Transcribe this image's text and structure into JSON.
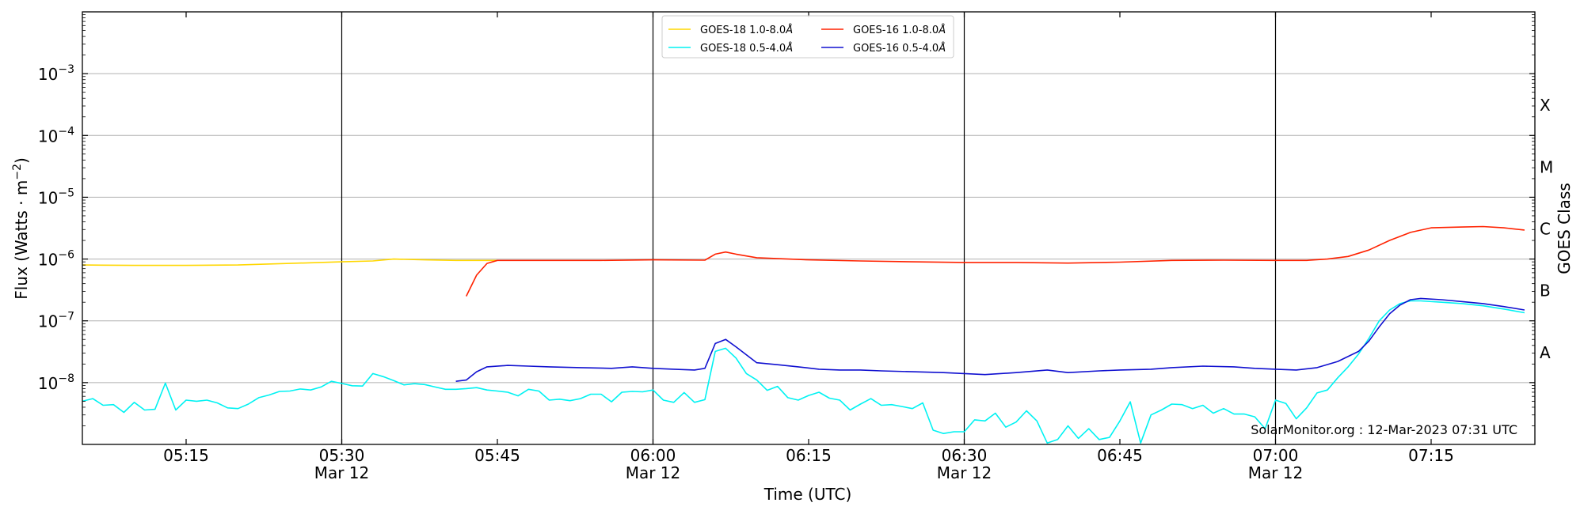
{
  "chart_data": {
    "type": "line",
    "ylabel": "Flux (Watts · m",
    "ylabel_sup": "−2",
    "ylabel_close": ")",
    "xlabel": "Time (UTC)",
    "right_label": "GOES Class",
    "credit": "SolarMonitor.org : 12-Mar-2023 07:31 UTC",
    "y_scale": "log",
    "ylim": [
      1e-09,
      0.01
    ],
    "xlim": [
      "2023-03-12 05:05",
      "2023-03-12 07:25"
    ],
    "y_ticks": [
      {
        "value": 0.001,
        "base": "10",
        "exp": "−3"
      },
      {
        "value": 0.0001,
        "base": "10",
        "exp": "−4"
      },
      {
        "value": 1e-05,
        "base": "10",
        "exp": "−5"
      },
      {
        "value": 1e-06,
        "base": "10",
        "exp": "−6"
      },
      {
        "value": 1e-07,
        "base": "10",
        "exp": "−7"
      },
      {
        "value": 1e-08,
        "base": "10",
        "exp": "−8"
      }
    ],
    "x_ticks": [
      {
        "time": "05:15",
        "label": "05:15",
        "date": ""
      },
      {
        "time": "05:30",
        "label": "05:30",
        "date": "Mar 12"
      },
      {
        "time": "05:45",
        "label": "05:45",
        "date": ""
      },
      {
        "time": "06:00",
        "label": "06:00",
        "date": "Mar 12"
      },
      {
        "time": "06:15",
        "label": "06:15",
        "date": ""
      },
      {
        "time": "06:30",
        "label": "06:30",
        "date": "Mar 12"
      },
      {
        "time": "06:45",
        "label": "06:45",
        "date": ""
      },
      {
        "time": "07:00",
        "label": "07:00",
        "date": "Mar 12"
      },
      {
        "time": "07:15",
        "label": "07:15",
        "date": ""
      }
    ],
    "grid_lines": [
      0.001,
      0.0001,
      1e-05,
      1e-06,
      1e-07,
      1e-08
    ],
    "vertical_lines": [
      "05:30",
      "06:00",
      "06:30",
      "07:00"
    ],
    "classes": [
      {
        "label": "X",
        "flux": 0.0001
      },
      {
        "label": "M",
        "flux": 1e-05
      },
      {
        "label": "C",
        "flux": 1e-06
      },
      {
        "label": "B",
        "flux": 1e-07
      },
      {
        "label": "A",
        "flux": 1e-08
      }
    ],
    "legend_position": "upper center",
    "series": [
      {
        "name": "GOES-18 1.0-8.0",
        "unit": "Å",
        "color": "#ffd700",
        "points": [
          [
            "05:05",
            8e-07
          ],
          [
            "05:10",
            7.9e-07
          ],
          [
            "05:15",
            7.9e-07
          ],
          [
            "05:20",
            8e-07
          ],
          [
            "05:25",
            8.5e-07
          ],
          [
            "05:30",
            9e-07
          ],
          [
            "05:33",
            9.3e-07
          ],
          [
            "05:35",
            1e-06
          ],
          [
            "05:38",
            9.7e-07
          ],
          [
            "05:41",
            9.5e-07
          ],
          [
            "05:45",
            9.5e-07
          ]
        ]
      },
      {
        "name": "GOES-18 0.5-4.0",
        "unit": "Å",
        "color": "#00f2f2",
        "points": [
          [
            "05:05",
            5e-09
          ],
          [
            "05:06",
            5.5e-09
          ],
          [
            "05:07",
            4.3e-09
          ],
          [
            "05:08",
            4.4e-09
          ],
          [
            "05:09",
            3.3e-09
          ],
          [
            "05:10",
            4.8e-09
          ],
          [
            "05:11",
            3.6e-09
          ],
          [
            "05:12",
            3.7e-09
          ],
          [
            "05:13",
            9.8e-09
          ],
          [
            "05:14",
            3.6e-09
          ],
          [
            "05:15",
            5.2e-09
          ],
          [
            "05:16",
            5e-09
          ],
          [
            "05:17",
            5.2e-09
          ],
          [
            "05:18",
            4.7e-09
          ],
          [
            "05:19",
            3.9e-09
          ],
          [
            "05:20",
            3.8e-09
          ],
          [
            "05:21",
            4.5e-09
          ],
          [
            "05:22",
            5.7e-09
          ],
          [
            "05:23",
            6.3e-09
          ],
          [
            "05:24",
            7.2e-09
          ],
          [
            "05:25",
            7.3e-09
          ],
          [
            "05:26",
            7.9e-09
          ],
          [
            "05:27",
            7.6e-09
          ],
          [
            "05:28",
            8.5e-09
          ],
          [
            "05:29",
            1.05e-08
          ],
          [
            "05:30",
            9.7e-09
          ],
          [
            "05:31",
            8.9e-09
          ],
          [
            "05:32",
            8.8e-09
          ],
          [
            "05:33",
            1.4e-08
          ],
          [
            "05:34",
            1.25e-08
          ],
          [
            "05:35",
            1.08e-08
          ],
          [
            "05:36",
            9.2e-09
          ],
          [
            "05:37",
            9.6e-09
          ],
          [
            "05:38",
            9.3e-09
          ],
          [
            "05:39",
            8.5e-09
          ],
          [
            "05:40",
            7.8e-09
          ],
          [
            "05:41",
            7.8e-09
          ],
          [
            "05:42",
            8e-09
          ],
          [
            "05:43",
            8.3e-09
          ],
          [
            "05:44",
            7.6e-09
          ],
          [
            "05:45",
            7.3e-09
          ],
          [
            "05:46",
            7e-09
          ],
          [
            "05:47",
            6.1e-09
          ],
          [
            "05:48",
            7.8e-09
          ],
          [
            "05:49",
            7.3e-09
          ],
          [
            "05:50",
            5.2e-09
          ],
          [
            "05:51",
            5.4e-09
          ],
          [
            "05:52",
            5.1e-09
          ],
          [
            "05:53",
            5.5e-09
          ],
          [
            "05:54",
            6.5e-09
          ],
          [
            "05:55",
            6.5e-09
          ],
          [
            "05:56",
            4.9e-09
          ],
          [
            "05:57",
            7e-09
          ],
          [
            "05:58",
            7.2e-09
          ],
          [
            "05:59",
            7.1e-09
          ],
          [
            "06:00",
            7.6e-09
          ],
          [
            "06:01",
            5.2e-09
          ],
          [
            "06:02",
            4.8e-09
          ],
          [
            "06:03",
            6.9e-09
          ],
          [
            "06:04",
            4.8e-09
          ],
          [
            "06:05",
            5.3e-09
          ],
          [
            "06:06",
            3.2e-08
          ],
          [
            "06:07",
            3.6e-08
          ],
          [
            "06:08",
            2.5e-08
          ],
          [
            "06:09",
            1.4e-08
          ],
          [
            "06:10",
            1.1e-08
          ],
          [
            "06:11",
            7.5e-09
          ],
          [
            "06:12",
            8.7e-09
          ],
          [
            "06:13",
            5.7e-09
          ],
          [
            "06:14",
            5.2e-09
          ],
          [
            "06:15",
            6.2e-09
          ],
          [
            "06:16",
            7e-09
          ],
          [
            "06:17",
            5.6e-09
          ],
          [
            "06:18",
            5.2e-09
          ],
          [
            "06:19",
            3.6e-09
          ],
          [
            "06:20",
            4.5e-09
          ],
          [
            "06:21",
            5.5e-09
          ],
          [
            "06:22",
            4.3e-09
          ],
          [
            "06:23",
            4.4e-09
          ],
          [
            "06:24",
            4.1e-09
          ],
          [
            "06:25",
            3.8e-09
          ],
          [
            "06:26",
            4.7e-09
          ],
          [
            "06:27",
            1.7e-09
          ],
          [
            "06:28",
            1.5e-09
          ],
          [
            "06:29",
            1.6e-09
          ],
          [
            "06:30",
            1.6e-09
          ],
          [
            "06:31",
            2.5e-09
          ],
          [
            "06:32",
            2.4e-09
          ],
          [
            "06:33",
            3.2e-09
          ],
          [
            "06:34",
            1.9e-09
          ],
          [
            "06:35",
            2.3e-09
          ],
          [
            "06:36",
            3.5e-09
          ],
          [
            "06:37",
            2.4e-09
          ],
          [
            "06:38",
            1.05e-09
          ],
          [
            "06:39",
            1.2e-09
          ],
          [
            "06:40",
            2e-09
          ],
          [
            "06:41",
            1.25e-09
          ],
          [
            "06:42",
            1.8e-09
          ],
          [
            "06:43",
            1.2e-09
          ],
          [
            "06:44",
            1.3e-09
          ],
          [
            "06:45",
            2.4e-09
          ],
          [
            "06:46",
            4.9e-09
          ],
          [
            "06:47",
            1.05e-09
          ],
          [
            "06:48",
            3e-09
          ],
          [
            "06:49",
            3.6e-09
          ],
          [
            "06:50",
            4.5e-09
          ],
          [
            "06:51",
            4.4e-09
          ],
          [
            "06:52",
            3.8e-09
          ],
          [
            "06:53",
            4.3e-09
          ],
          [
            "06:54",
            3.2e-09
          ],
          [
            "06:55",
            3.8e-09
          ],
          [
            "06:56",
            3.1e-09
          ],
          [
            "06:57",
            3.1e-09
          ],
          [
            "06:58",
            2.8e-09
          ],
          [
            "06:59",
            1.8e-09
          ],
          [
            "07:00",
            5.2e-09
          ],
          [
            "07:01",
            4.6e-09
          ],
          [
            "07:02",
            2.6e-09
          ],
          [
            "07:03",
            3.9e-09
          ],
          [
            "07:04",
            6.8e-09
          ],
          [
            "07:05",
            7.6e-09
          ],
          [
            "07:06",
            1.2e-08
          ],
          [
            "07:07",
            1.8e-08
          ],
          [
            "07:08",
            2.9e-08
          ],
          [
            "07:09",
            5.2e-08
          ],
          [
            "07:10",
            1e-07
          ],
          [
            "07:11",
            1.5e-07
          ],
          [
            "07:12",
            1.9e-07
          ],
          [
            "07:13",
            2.1e-07
          ],
          [
            "07:14",
            2.1e-07
          ],
          [
            "07:16",
            2e-07
          ],
          [
            "07:18",
            1.9e-07
          ],
          [
            "07:20",
            1.75e-07
          ],
          [
            "07:22",
            1.55e-07
          ],
          [
            "07:24",
            1.35e-07
          ]
        ]
      },
      {
        "name": "GOES-16 1.0-8.0",
        "unit": "Å",
        "color": "#ff2200",
        "points": [
          [
            "05:42",
            2.5e-07
          ],
          [
            "05:43",
            5.5e-07
          ],
          [
            "05:44",
            8.5e-07
          ],
          [
            "05:45",
            9.5e-07
          ],
          [
            "05:50",
            9.5e-07
          ],
          [
            "05:55",
            9.5e-07
          ],
          [
            "06:00",
            9.7e-07
          ],
          [
            "06:05",
            9.6e-07
          ],
          [
            "06:06",
            1.2e-06
          ],
          [
            "06:07",
            1.3e-06
          ],
          [
            "06:08",
            1.2e-06
          ],
          [
            "06:10",
            1.05e-06
          ],
          [
            "06:15",
            9.7e-07
          ],
          [
            "06:20",
            9.3e-07
          ],
          [
            "06:25",
            9e-07
          ],
          [
            "06:30",
            8.8e-07
          ],
          [
            "06:35",
            8.8e-07
          ],
          [
            "06:40",
            8.6e-07
          ],
          [
            "06:45",
            8.9e-07
          ],
          [
            "06:50",
            9.5e-07
          ],
          [
            "06:55",
            9.6e-07
          ],
          [
            "07:00",
            9.5e-07
          ],
          [
            "07:03",
            9.5e-07
          ],
          [
            "07:05",
            1e-06
          ],
          [
            "07:07",
            1.1e-06
          ],
          [
            "07:09",
            1.4e-06
          ],
          [
            "07:11",
            2e-06
          ],
          [
            "07:13",
            2.7e-06
          ],
          [
            "07:15",
            3.2e-06
          ],
          [
            "07:18",
            3.3e-06
          ],
          [
            "07:20",
            3.35e-06
          ],
          [
            "07:22",
            3.2e-06
          ],
          [
            "07:24",
            2.95e-06
          ]
        ]
      },
      {
        "name": "GOES-16 0.5-4.0",
        "unit": "Å",
        "color": "#1010d0",
        "points": [
          [
            "05:41",
            1.05e-08
          ],
          [
            "05:42",
            1.1e-08
          ],
          [
            "05:43",
            1.5e-08
          ],
          [
            "05:44",
            1.8e-08
          ],
          [
            "05:46",
            1.9e-08
          ],
          [
            "05:48",
            1.85e-08
          ],
          [
            "05:50",
            1.8e-08
          ],
          [
            "05:53",
            1.75e-08
          ],
          [
            "05:56",
            1.7e-08
          ],
          [
            "05:58",
            1.8e-08
          ],
          [
            "06:00",
            1.7e-08
          ],
          [
            "06:02",
            1.65e-08
          ],
          [
            "06:04",
            1.6e-08
          ],
          [
            "06:05",
            1.7e-08
          ],
          [
            "06:06",
            4.3e-08
          ],
          [
            "06:07",
            5e-08
          ],
          [
            "06:08",
            3.8e-08
          ],
          [
            "06:10",
            2.1e-08
          ],
          [
            "06:12",
            1.95e-08
          ],
          [
            "06:14",
            1.8e-08
          ],
          [
            "06:16",
            1.65e-08
          ],
          [
            "06:18",
            1.6e-08
          ],
          [
            "06:20",
            1.6e-08
          ],
          [
            "06:22",
            1.55e-08
          ],
          [
            "06:25",
            1.5e-08
          ],
          [
            "06:28",
            1.45e-08
          ],
          [
            "06:30",
            1.4e-08
          ],
          [
            "06:32",
            1.35e-08
          ],
          [
            "06:35",
            1.45e-08
          ],
          [
            "06:38",
            1.6e-08
          ],
          [
            "06:40",
            1.45e-08
          ],
          [
            "06:43",
            1.55e-08
          ],
          [
            "06:45",
            1.6e-08
          ],
          [
            "06:48",
            1.65e-08
          ],
          [
            "06:50",
            1.75e-08
          ],
          [
            "06:53",
            1.85e-08
          ],
          [
            "06:56",
            1.8e-08
          ],
          [
            "06:58",
            1.7e-08
          ],
          [
            "07:00",
            1.65e-08
          ],
          [
            "07:02",
            1.6e-08
          ],
          [
            "07:04",
            1.75e-08
          ],
          [
            "07:06",
            2.2e-08
          ],
          [
            "07:08",
            3.2e-08
          ],
          [
            "07:09",
            4.7e-08
          ],
          [
            "07:10",
            8e-08
          ],
          [
            "07:11",
            1.3e-07
          ],
          [
            "07:12",
            1.8e-07
          ],
          [
            "07:13",
            2.2e-07
          ],
          [
            "07:14",
            2.3e-07
          ],
          [
            "07:16",
            2.2e-07
          ],
          [
            "07:18",
            2.05e-07
          ],
          [
            "07:20",
            1.9e-07
          ],
          [
            "07:22",
            1.7e-07
          ],
          [
            "07:24",
            1.5e-07
          ]
        ]
      }
    ]
  }
}
